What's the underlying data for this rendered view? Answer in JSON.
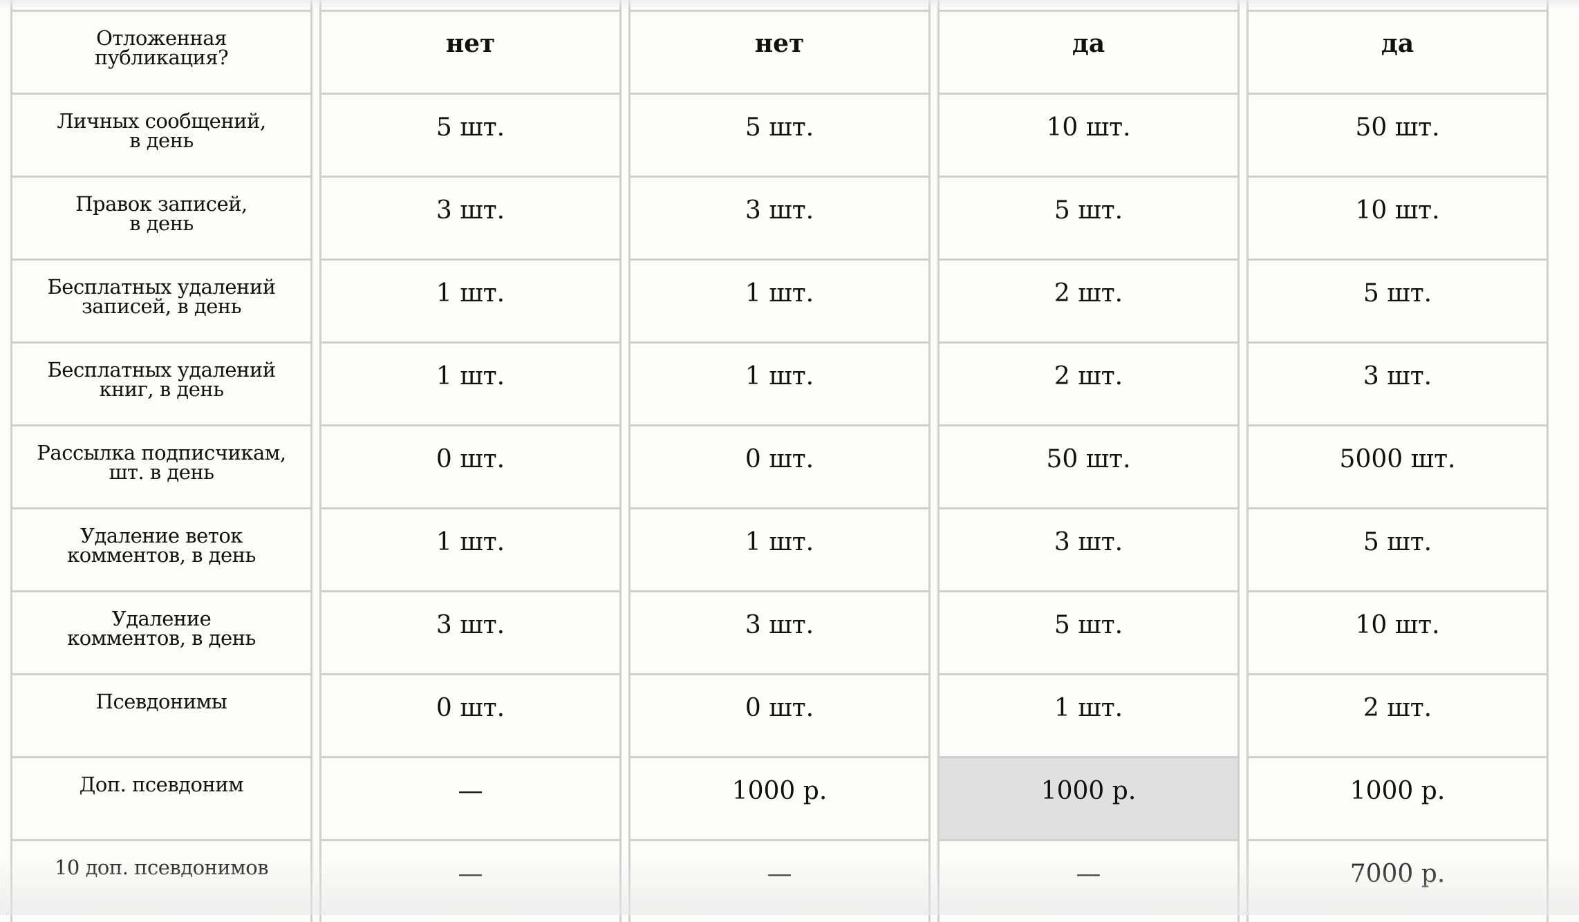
{
  "table": {
    "highlight_color": "#e0e0e0",
    "rows": [
      {
        "label": "",
        "values": [
          "",
          "",
          "",
          ""
        ]
      },
      {
        "label": "Отложенная публикация?",
        "values": [
          "нет",
          "нет",
          "да",
          "да"
        ],
        "bold": true
      },
      {
        "label": "Личных сообщений, в день",
        "values": [
          "5 шт.",
          "5 шт.",
          "10 шт.",
          "50 шт."
        ]
      },
      {
        "label": "Правок записей, в день",
        "values": [
          "3 шт.",
          "3 шт.",
          "5 шт.",
          "10 шт."
        ]
      },
      {
        "label": "Бесплатных удалений записей, в день",
        "values": [
          "1 шт.",
          "1 шт.",
          "2 шт.",
          "5 шт."
        ]
      },
      {
        "label": "Бесплатных удалений книг, в день",
        "values": [
          "1 шт.",
          "1 шт.",
          "2 шт.",
          "3 шт."
        ]
      },
      {
        "label": "Рассылка подписчикам, шт. в день",
        "values": [
          "0 шт.",
          "0 шт.",
          "50 шт.",
          "5000 шт."
        ]
      },
      {
        "label": "Удаление веток комментов, в день",
        "values": [
          "1 шт.",
          "1 шт.",
          "3 шт.",
          "5 шт."
        ]
      },
      {
        "label": "Удаление комментов, в день",
        "values": [
          "3 шт.",
          "3 шт.",
          "5 шт.",
          "10 шт."
        ]
      },
      {
        "label": "Псевдонимы",
        "values": [
          "0 шт.",
          "0 шт.",
          "1 шт.",
          "2 шт."
        ]
      },
      {
        "label": "Доп. псевдоним",
        "values": [
          "—",
          "1000 р.",
          "1000 р.",
          "1000 р."
        ],
        "highlight": [
          2
        ]
      },
      {
        "label": "10 доп. псевдонимов",
        "values": [
          "—",
          "—",
          "—",
          "7000 р."
        ]
      }
    ],
    "label_lines": {
      "1": [
        "Отложенная",
        "публикация?"
      ],
      "2": [
        "Личных сообщений,",
        "в день"
      ],
      "3": [
        "Правок записей,",
        "в день"
      ],
      "4": [
        "Бесплатных удалений",
        "записей, в день"
      ],
      "5": [
        "Бесплатных удалений",
        "книг, в день"
      ],
      "6": [
        "Рассылка подписчикам,",
        "шт. в день"
      ],
      "7": [
        "Удаление веток",
        "комментов, в день"
      ],
      "8": [
        "Удаление",
        "комментов, в день"
      ],
      "9": [
        "Псевдонимы"
      ],
      "10": [
        "Доп. псевдоним"
      ],
      "11": [
        "10 доп. псевдонимов"
      ]
    }
  }
}
